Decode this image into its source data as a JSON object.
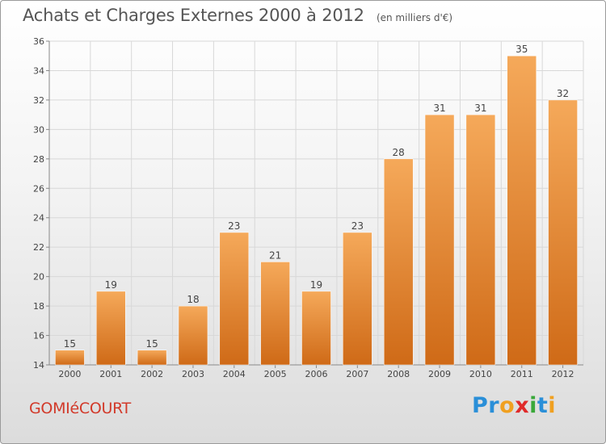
{
  "header": {
    "title": "Achats et Charges Externes 2000 à 2012",
    "unit": "(en milliers d'€)"
  },
  "footer": {
    "commune": "GOMIéCOURT",
    "logo_letters": [
      {
        "char": "P",
        "color": "#2a8fd8"
      },
      {
        "char": "r",
        "color": "#2a8fd8"
      },
      {
        "char": "o",
        "color": "#f0a020"
      },
      {
        "char": "x",
        "color": "#e02a2a"
      },
      {
        "char": "i",
        "color": "#3aa83a"
      },
      {
        "char": "t",
        "color": "#2a8fd8"
      },
      {
        "char": "i",
        "color": "#f0a020"
      }
    ]
  },
  "colors": {
    "bar_light": "#f5a95a",
    "bar_dark": "#cf6a17",
    "grid": "#d8d8d8",
    "axis": "#888888"
  },
  "chart_data": {
    "type": "bar",
    "title": "Achats et Charges Externes 2000 à 2012",
    "subtitle": "(en milliers d'€)",
    "xlabel": "",
    "ylabel": "",
    "categories": [
      "2000",
      "2001",
      "2002",
      "2003",
      "2004",
      "2005",
      "2006",
      "2007",
      "2008",
      "2009",
      "2010",
      "2011",
      "2012"
    ],
    "values": [
      15,
      19,
      15,
      18,
      23,
      21,
      19,
      23,
      28,
      31,
      31,
      35,
      32
    ],
    "ylim": [
      14,
      36
    ],
    "yticks": [
      14,
      16,
      18,
      20,
      22,
      24,
      26,
      28,
      30,
      32,
      34,
      36
    ],
    "grid": true,
    "legend": "none"
  }
}
